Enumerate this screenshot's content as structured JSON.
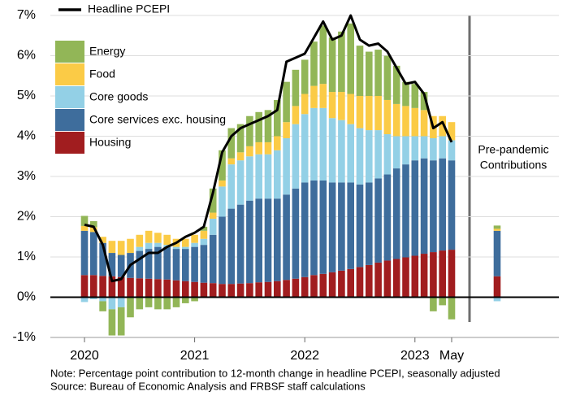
{
  "chart_data": {
    "type": "bar",
    "stacked": true,
    "categories": [
      "2020",
      null,
      null,
      null,
      null,
      null,
      null,
      null,
      null,
      null,
      null,
      null,
      "2021",
      null,
      null,
      null,
      null,
      null,
      null,
      null,
      null,
      null,
      null,
      null,
      "2022",
      null,
      null,
      null,
      null,
      null,
      null,
      null,
      null,
      null,
      null,
      null,
      "2023",
      null,
      null,
      null,
      "May"
    ],
    "series": [
      {
        "name": "Housing",
        "color": "#a11d1f",
        "values": [
          0.55,
          0.55,
          0.53,
          0.52,
          0.5,
          0.48,
          0.47,
          0.46,
          0.45,
          0.44,
          0.42,
          0.4,
          0.38,
          0.36,
          0.35,
          0.33,
          0.33,
          0.34,
          0.35,
          0.37,
          0.38,
          0.4,
          0.43,
          0.46,
          0.5,
          0.55,
          0.58,
          0.62,
          0.66,
          0.7,
          0.75,
          0.8,
          0.86,
          0.91,
          0.95,
          0.99,
          1.03,
          1.08,
          1.12,
          1.16,
          1.18
        ]
      },
      {
        "name": "Core services exc. housing",
        "color": "#3e6d9c",
        "values": [
          1.1,
          1.07,
          0.82,
          0.58,
          0.55,
          0.62,
          0.68,
          0.74,
          0.8,
          0.81,
          0.78,
          0.8,
          0.87,
          0.94,
          1.2,
          1.67,
          1.87,
          1.96,
          2.05,
          2.08,
          2.07,
          2.05,
          2.12,
          2.24,
          2.35,
          2.35,
          2.32,
          2.23,
          2.19,
          2.15,
          2.05,
          2.05,
          2.09,
          2.14,
          2.25,
          2.31,
          2.37,
          2.37,
          2.28,
          2.29,
          2.22
        ]
      },
      {
        "name": "Core goods",
        "color": "#93d0e6",
        "values": [
          -0.12,
          -0.05,
          -0.1,
          -0.3,
          -0.25,
          0.0,
          0.1,
          0.15,
          0.1,
          0.05,
          0.05,
          0.05,
          0.1,
          0.15,
          0.4,
          0.75,
          1.1,
          1.1,
          1.1,
          1.1,
          1.1,
          1.2,
          1.4,
          1.6,
          1.7,
          1.8,
          1.8,
          1.6,
          1.55,
          1.45,
          1.4,
          1.3,
          1.2,
          1.0,
          0.8,
          0.7,
          0.6,
          0.55,
          0.55,
          0.55,
          0.5
        ]
      },
      {
        "name": "Food",
        "color": "#fbcb46",
        "values": [
          0.12,
          0.12,
          0.15,
          0.3,
          0.35,
          0.35,
          0.3,
          0.3,
          0.25,
          0.25,
          0.2,
          0.2,
          0.2,
          0.2,
          0.15,
          0.15,
          0.15,
          0.2,
          0.25,
          0.3,
          0.3,
          0.35,
          0.4,
          0.45,
          0.5,
          0.55,
          0.6,
          0.65,
          0.7,
          0.75,
          0.8,
          0.85,
          0.85,
          0.85,
          0.8,
          0.75,
          0.7,
          0.65,
          0.55,
          0.5,
          0.45
        ]
      },
      {
        "name": "Energy",
        "color": "#92b657",
        "values": [
          0.25,
          0.15,
          -0.25,
          -0.65,
          -0.7,
          -0.5,
          -0.3,
          -0.25,
          -0.3,
          -0.3,
          -0.25,
          -0.15,
          -0.1,
          0.1,
          0.6,
          0.75,
          0.75,
          0.7,
          0.75,
          0.75,
          0.8,
          0.9,
          1.0,
          0.9,
          0.85,
          1.1,
          1.45,
          1.35,
          1.5,
          1.75,
          1.25,
          1.1,
          1.15,
          1.1,
          0.95,
          0.6,
          0.6,
          0.45,
          -0.35,
          -0.2,
          -0.55
        ]
      }
    ],
    "line": {
      "name": "Headline PCEPI",
      "color": "#000000",
      "values": [
        1.8,
        1.75,
        1.3,
        0.4,
        0.45,
        0.8,
        0.95,
        1.1,
        1.1,
        1.25,
        1.35,
        1.5,
        1.6,
        1.75,
        2.6,
        3.6,
        4.0,
        4.2,
        4.3,
        4.4,
        4.5,
        4.65,
        5.85,
        5.95,
        6.05,
        6.45,
        6.85,
        6.4,
        6.5,
        7.0,
        6.4,
        6.25,
        6.3,
        6.1,
        5.7,
        5.3,
        5.35,
        5.05,
        4.2,
        4.35,
        3.85
      ]
    },
    "pre_pandemic": {
      "label": [
        "Pre-pandemic",
        "Contributions"
      ],
      "values": [
        0.52,
        1.13,
        -0.1,
        0.05,
        0.08
      ]
    },
    "ylim": [
      -1,
      7
    ],
    "yticks": [
      {
        "value": -1,
        "label": "-1%"
      },
      {
        "value": 0,
        "label": "0%"
      },
      {
        "value": 1,
        "label": "1%"
      },
      {
        "value": 2,
        "label": "2%"
      },
      {
        "value": 3,
        "label": "3%"
      },
      {
        "value": 4,
        "label": "4%"
      },
      {
        "value": 5,
        "label": "5%"
      },
      {
        "value": 6,
        "label": "6%"
      },
      {
        "value": 7,
        "label": "7%"
      }
    ],
    "grid": true,
    "legend": "upper left",
    "notes": [
      "Note: Percentage point contribution to 12-month change in headline PCEPI, seasonally adjusted",
      "Source: Bureau of Economic Analysis and FRBSF staff calculations"
    ]
  }
}
